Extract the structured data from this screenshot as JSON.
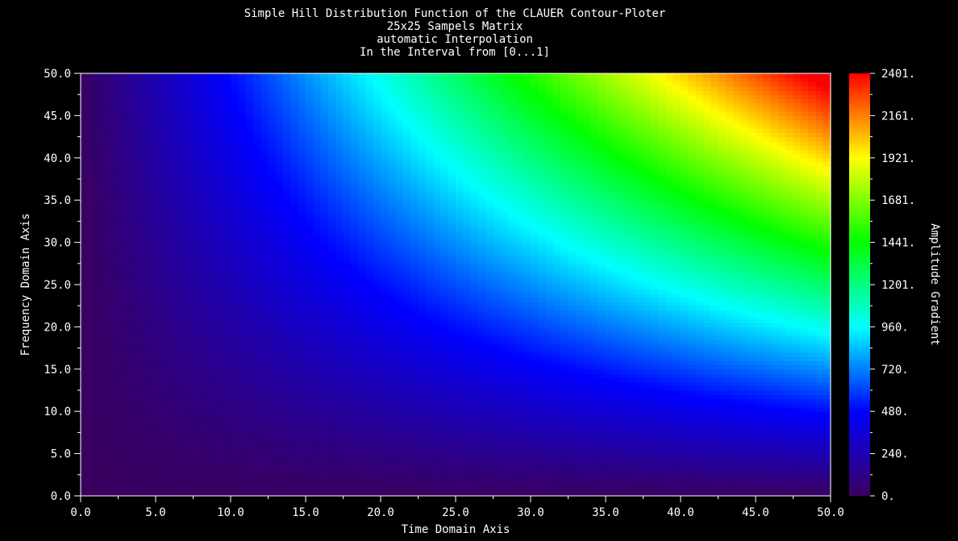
{
  "chart_data": {
    "type": "heatmap",
    "title_lines": [
      "Simple Hill Distribution Function of the CLAUER Contour-Ploter",
      "25x25 Sampels Matrix",
      "automatic Interpolation",
      "In the Interval from [0...1]"
    ],
    "xlabel": "Time Domain Axis",
    "ylabel": "Frequency Domain Axis",
    "colorbar_label": "Amplitude Gradient",
    "xlim": [
      0,
      50
    ],
    "ylim": [
      0,
      50
    ],
    "x_ticks": [
      "0.0",
      "5.0",
      "10.0",
      "15.0",
      "20.0",
      "25.0",
      "30.0",
      "35.0",
      "40.0",
      "45.0",
      "50.0"
    ],
    "y_ticks": [
      "0.0",
      "5.0",
      "10.0",
      "15.0",
      "20.0",
      "25.0",
      "30.0",
      "35.0",
      "40.0",
      "45.0",
      "50.0"
    ],
    "colorbar_range": [
      0,
      2401
    ],
    "colorbar_ticks": [
      "0.",
      "240.",
      "480.",
      "720.",
      "960.",
      "1201.",
      "1441.",
      "1681.",
      "1921.",
      "2161.",
      "2401."
    ],
    "function": "z = x * y (approx.)",
    "grid": 25,
    "colormap": [
      "#3a0060",
      "#0000ff",
      "#00ffff",
      "#00ff00",
      "#ffff00",
      "#ff0000"
    ],
    "background_color": "#000000",
    "text_color": "#ffffff"
  }
}
